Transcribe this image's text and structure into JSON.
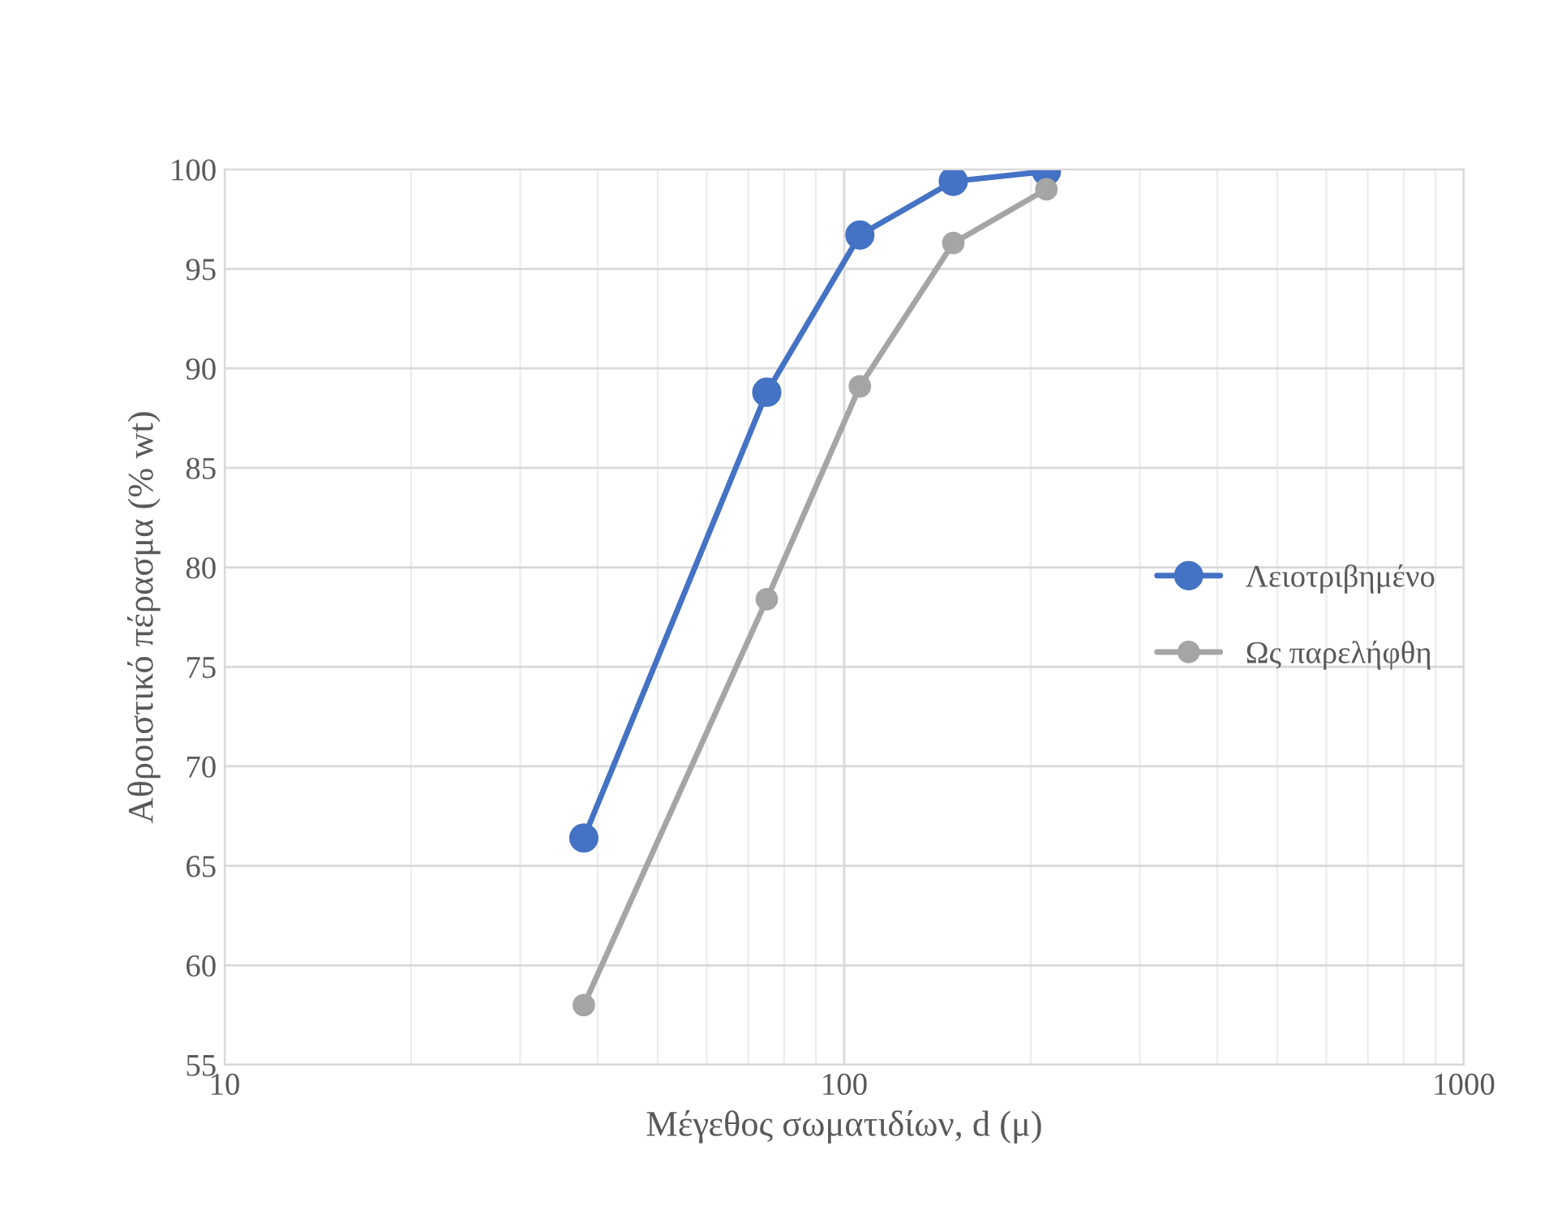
{
  "chart_data": {
    "type": "line",
    "xlabel": "Μέγεθος σωματιδίων, d (μ)",
    "ylabel": "Αθροιστικό πέρασμα (% wt)",
    "x": [
      38,
      75,
      106,
      150,
      212
    ],
    "series": [
      {
        "name": "Λειοτριβημένο",
        "color": "#4472c4",
        "values": [
          66.4,
          88.8,
          96.7,
          99.4,
          99.9
        ]
      },
      {
        "name": "Ως παρελήφθη",
        "color": "#a5a5a5",
        "values": [
          58.0,
          78.4,
          89.1,
          96.3,
          99.0
        ]
      }
    ],
    "log": "x",
    "xlim": [
      10,
      1000
    ],
    "xticks": [
      10,
      100,
      1000
    ],
    "ylim": [
      55,
      100
    ],
    "yticks": [
      55,
      60,
      65,
      70,
      75,
      80,
      85,
      90,
      95,
      100
    ],
    "grid": true,
    "legend": "right",
    "marker": "circle",
    "line_style": "solid"
  }
}
